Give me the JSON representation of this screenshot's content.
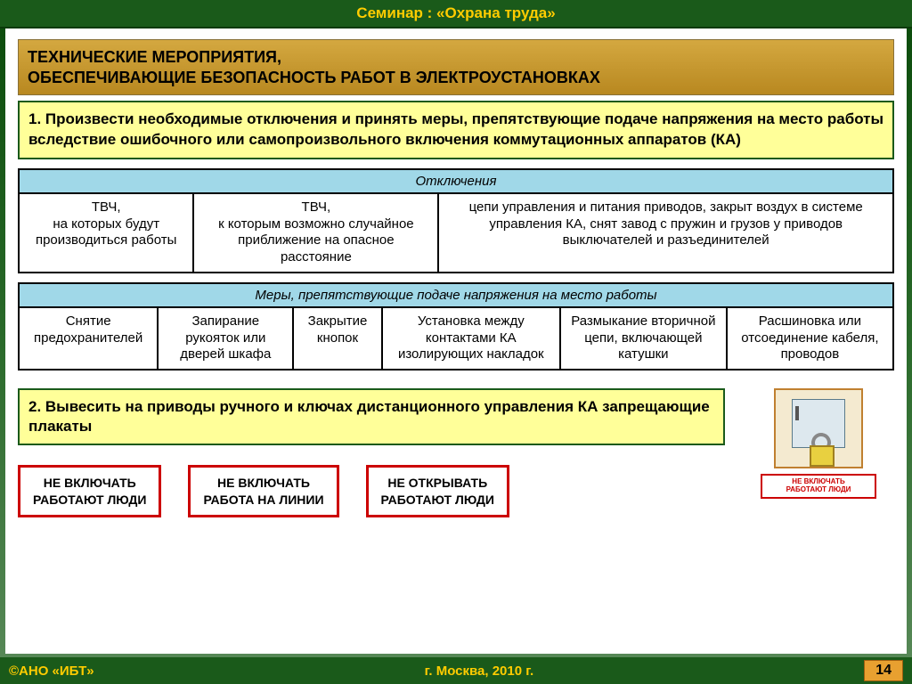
{
  "header": {
    "title": "Семинар : «Охрана труда»"
  },
  "section": {
    "title_line1": "ТЕХНИЧЕСКИЕ МЕРОПРИЯТИЯ,",
    "title_line2": "ОБЕСПЕЧИВАЮЩИЕ БЕЗОПАСНОСТЬ РАБОТ В ЭЛЕКТРОУСТАНОВКАХ"
  },
  "step1": {
    "text": "1. Произвести необходимые отключения и принять меры, препятствующие подаче напряжения на место работы вследствие ошибочного или самопроизвольного включения коммутационных аппаратов (КА)"
  },
  "table1": {
    "header": "Отключения",
    "cells": [
      "ТВЧ,\nна которых будут производиться работы",
      "ТВЧ,\nк которым возможно случайное приближение на опасное расстояние",
      "цепи управления и питания приводов, закрыт воздух в системе управления КА, снят завод с пружин и грузов у приводов выключателей и разъединителей"
    ],
    "col_widths": [
      "20%",
      "28%",
      "52%"
    ]
  },
  "table2": {
    "header": "Меры, препятствующие подаче напряжения на место работы",
    "cells": [
      "Снятие предохранителей",
      "Запирание рукояток или дверей шкафа",
      "Закрытие кнопок",
      "Установка между контактами КА изолирующих накладок",
      "Размыкание вторичной цепи, включающей катушки",
      "Расшиновка или отсоединение кабеля, проводов"
    ]
  },
  "step2": {
    "text": "2. Вывесить на приводы ручного и ключах дистанционного управления КА запрещающие плакаты"
  },
  "signs": [
    "НЕ ВКЛЮЧАТЬ\nРАБОТАЮТ ЛЮДИ",
    "НЕ ВКЛЮЧАТЬ\nРАБОТА НА ЛИНИИ",
    "НЕ ОТКРЫВАТЬ\nРАБОТАЮТ ЛЮДИ"
  ],
  "mini_sign": "НЕ ВКЛЮЧАТЬ\nРАБОТАЮТ ЛЮДИ",
  "footer": {
    "org": "©АНО «ИБТ»",
    "place": "г. Москва,  2010 г.",
    "page": "14"
  }
}
